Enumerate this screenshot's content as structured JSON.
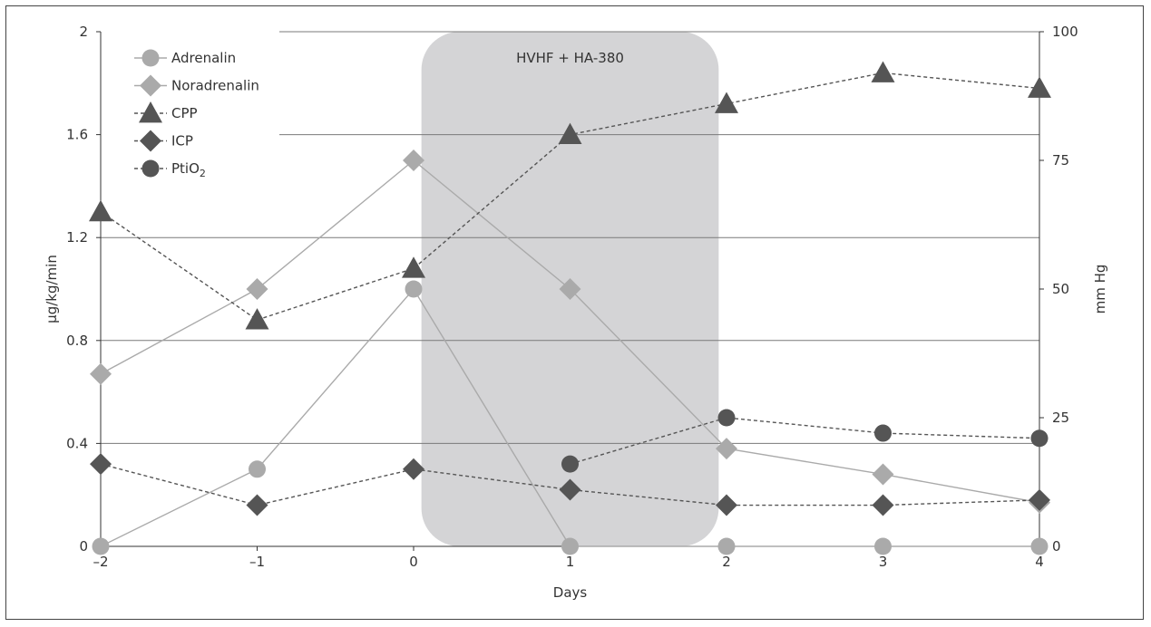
{
  "chart_data": {
    "type": "line",
    "xlabel": "Days",
    "ylabel_left": "µg/kg/min",
    "ylabel_right": "mm Hg",
    "xlim": [
      -2,
      4
    ],
    "ylim_left": [
      0,
      2
    ],
    "ylim_right": [
      0,
      100
    ],
    "x_ticks": [
      -2,
      -1,
      0,
      1,
      2,
      3,
      4
    ],
    "x_tick_labels": [
      "–2",
      "–1",
      "0",
      "1",
      "2",
      "3",
      "4"
    ],
    "y_left_ticks": [
      0,
      0.4,
      0.8,
      1.2,
      1.6,
      2
    ],
    "y_left_tick_labels": [
      "0",
      "0.4",
      "0.8",
      "1.2",
      "1.6",
      "2"
    ],
    "y_right_ticks": [
      0,
      25,
      50,
      75,
      100
    ],
    "y_right_tick_labels": [
      "0",
      "25",
      "50",
      "75",
      "100"
    ],
    "grid": "horizontal",
    "legend_position": "top-left",
    "shaded_region": {
      "x_start": 0.05,
      "x_end": 1.95,
      "label": "HVHF + HA-380",
      "color": "#d4d4d6"
    },
    "series": [
      {
        "name": "Adrenalin",
        "axis": "left",
        "marker": "circle",
        "line": "solid",
        "color": "#aaaaaa",
        "points": [
          [
            -2,
            0
          ],
          [
            -1,
            0.3
          ],
          [
            0,
            1.0
          ],
          [
            1,
            0
          ],
          [
            2,
            0
          ],
          [
            3,
            0
          ],
          [
            4,
            0
          ]
        ]
      },
      {
        "name": "Noradrenalin",
        "axis": "left",
        "marker": "diamond",
        "line": "solid",
        "color": "#aaaaaa",
        "points": [
          [
            -2,
            0.67
          ],
          [
            -1,
            1.0
          ],
          [
            0,
            1.5
          ],
          [
            1,
            1.0
          ],
          [
            2,
            0.38
          ],
          [
            3,
            0.28
          ],
          [
            4,
            0.17
          ]
        ]
      },
      {
        "name": "CPP",
        "axis": "right",
        "marker": "triangle",
        "line": "dashed",
        "color": "#555555",
        "points": [
          [
            -2,
            65
          ],
          [
            -1,
            44
          ],
          [
            0,
            54
          ],
          [
            1,
            80
          ],
          [
            2,
            86
          ],
          [
            3,
            92
          ],
          [
            4,
            89
          ]
        ]
      },
      {
        "name": "ICP",
        "axis": "right",
        "marker": "diamond",
        "line": "dashed",
        "color": "#555555",
        "points": [
          [
            -2,
            16
          ],
          [
            -1,
            8
          ],
          [
            0,
            15
          ],
          [
            1,
            11
          ],
          [
            2,
            8
          ],
          [
            3,
            8
          ],
          [
            4,
            9
          ]
        ]
      },
      {
        "name": "PtiO",
        "name_sub": "2",
        "axis": "right",
        "marker": "circle",
        "line": "dashed",
        "color": "#555555",
        "points": [
          [
            1,
            16
          ],
          [
            2,
            25
          ],
          [
            3,
            22
          ],
          [
            4,
            21
          ]
        ]
      }
    ]
  }
}
